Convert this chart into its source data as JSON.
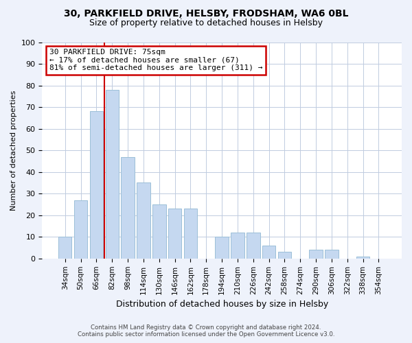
{
  "title": "30, PARKFIELD DRIVE, HELSBY, FRODSHAM, WA6 0BL",
  "subtitle": "Size of property relative to detached houses in Helsby",
  "xlabel": "Distribution of detached houses by size in Helsby",
  "ylabel": "Number of detached properties",
  "bar_labels": [
    "34sqm",
    "50sqm",
    "66sqm",
    "82sqm",
    "98sqm",
    "114sqm",
    "130sqm",
    "146sqm",
    "162sqm",
    "178sqm",
    "194sqm",
    "210sqm",
    "226sqm",
    "242sqm",
    "258sqm",
    "274sqm",
    "290sqm",
    "306sqm",
    "322sqm",
    "338sqm",
    "354sqm"
  ],
  "bar_values": [
    10,
    27,
    68,
    78,
    47,
    35,
    25,
    23,
    23,
    0,
    10,
    12,
    12,
    6,
    3,
    0,
    4,
    4,
    0,
    1,
    0
  ],
  "bar_color": "#c5d8f0",
  "bar_edge_color": "#9bbfd8",
  "highlight_color": "#cc0000",
  "annotation_title": "30 PARKFIELD DRIVE: 75sqm",
  "annotation_line1": "← 17% of detached houses are smaller (67)",
  "annotation_line2": "81% of semi-detached houses are larger (311) →",
  "annotation_box_color": "#ffffff",
  "annotation_box_edge": "#cc0000",
  "ylim": [
    0,
    100
  ],
  "yticks": [
    0,
    10,
    20,
    30,
    40,
    50,
    60,
    70,
    80,
    90,
    100
  ],
  "footer_line1": "Contains HM Land Registry data © Crown copyright and database right 2024.",
  "footer_line2": "Contains public sector information licensed under the Open Government Licence v3.0.",
  "bg_color": "#eef2fb",
  "plot_bg_color": "#ffffff",
  "grid_color": "#c0cce0"
}
